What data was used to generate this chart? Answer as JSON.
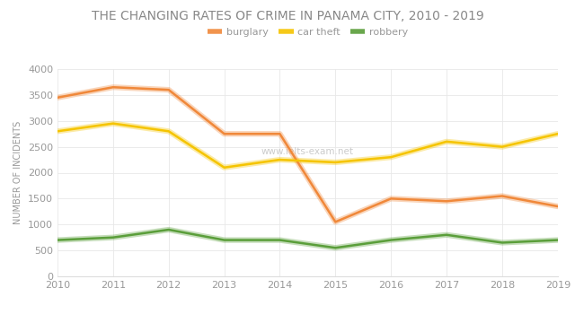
{
  "title": "THE CHANGING RATES OF CRIME IN PANAMA CITY, 2010 - 2019",
  "ylabel": "NUMBER OF INCIDENTS",
  "watermark": "www.ielts-exam.net",
  "years": [
    2010,
    2011,
    2012,
    2013,
    2014,
    2015,
    2016,
    2017,
    2018,
    2019
  ],
  "series": [
    {
      "label": "burglary",
      "color": "#f0883a",
      "linewidth": 1.8,
      "values": [
        3450,
        3650,
        3600,
        2750,
        2750,
        1050,
        1500,
        1450,
        1550,
        1350
      ]
    },
    {
      "label": "car theft",
      "color": "#f5c400",
      "linewidth": 1.8,
      "values": [
        2800,
        2950,
        2800,
        2100,
        2250,
        2200,
        2300,
        2600,
        2500,
        2750
      ]
    },
    {
      "label": "robbery",
      "color": "#5a9e3a",
      "linewidth": 1.8,
      "values": [
        700,
        750,
        900,
        700,
        700,
        550,
        700,
        800,
        650,
        700
      ]
    }
  ],
  "ylim": [
    0,
    4000
  ],
  "yticks": [
    0,
    500,
    1000,
    1500,
    2000,
    2500,
    3000,
    3500,
    4000
  ],
  "background_color": "#ffffff",
  "grid_color": "#e8e8e8",
  "title_fontsize": 10,
  "axis_label_fontsize": 7,
  "tick_fontsize": 8,
  "legend_fontsize": 8,
  "watermark_color": "#cccccc",
  "text_color": "#999999",
  "spine_color": "#dddddd"
}
